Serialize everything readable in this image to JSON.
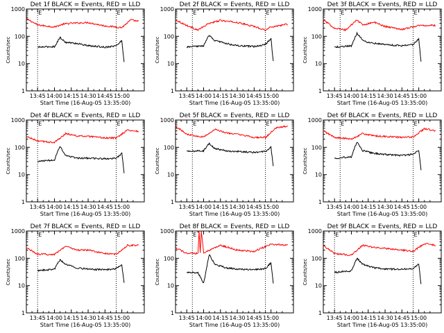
{
  "colors": {
    "events": "#000000",
    "lld": "#ff0000",
    "background": "#ffffff"
  },
  "common": {
    "ylabel": "Counts/sec",
    "xlabel": "Start Time (16-Aug-05 13:35:00)",
    "xticks": [
      "13:45",
      "14:00",
      "14:15",
      "14:30",
      "14:45",
      "15:00"
    ],
    "yticks": [
      "1",
      "10",
      "100",
      "1000"
    ],
    "marker": "E"
  },
  "chart_data": [
    {
      "type": "line",
      "title": "Det 1f BLACK = Events, RED = LLD",
      "yscale": "log",
      "ylim": [
        1,
        1000
      ],
      "xlabel": "Start Time (16-Aug-05 13:35:00)",
      "ylabel": "Counts/sec",
      "series": [
        {
          "x": [
            "13:35",
            "13:45",
            "14:00",
            "14:08",
            "14:15",
            "14:30",
            "14:45",
            "15:00",
            "15:08",
            "15:15"
          ],
          "values": [
            450,
            260,
            220,
            280,
            300,
            320,
            240,
            210,
            400,
            350
          ]
        },
        {
          "x": [
            "13:45",
            "14:00",
            "14:05",
            "14:10",
            "14:20",
            "14:30",
            "14:45",
            "14:55",
            "15:00",
            "15:02"
          ],
          "values": [
            40,
            42,
            90,
            60,
            55,
            45,
            40,
            45,
            70,
            12
          ]
        }
      ],
      "events": [
        "13:45",
        "14:55"
      ]
    },
    {
      "type": "line",
      "title": "Det 2f BLACK = Events, RED = LLD",
      "yscale": "log",
      "ylim": [
        1,
        1000
      ],
      "xlabel": "Start Time (16-Aug-05 13:35:00)",
      "ylabel": "Counts/sec",
      "series": [
        {
          "x": [
            "13:35",
            "13:45",
            "13:55",
            "14:05",
            "14:15",
            "14:30",
            "14:45",
            "14:55",
            "15:00",
            "15:15"
          ],
          "values": [
            400,
            250,
            170,
            300,
            380,
            320,
            230,
            170,
            220,
            280
          ]
        },
        {
          "x": [
            "13:45",
            "14:00",
            "14:05",
            "14:10",
            "14:20",
            "14:30",
            "14:45",
            "14:55",
            "15:00",
            "15:02"
          ],
          "values": [
            40,
            45,
            110,
            70,
            55,
            45,
            42,
            50,
            85,
            12
          ]
        }
      ],
      "events": [
        "13:50",
        "14:55"
      ]
    },
    {
      "type": "line",
      "title": "Det 3f BLACK = Events, RED = LLD",
      "yscale": "log",
      "ylim": [
        1,
        1000
      ],
      "xlabel": "Start Time (16-Aug-05 13:35:00)",
      "ylabel": "Counts/sec",
      "series": [
        {
          "x": [
            "13:35",
            "13:45",
            "13:55",
            "14:05",
            "14:10",
            "14:20",
            "14:30",
            "14:45",
            "15:00",
            "15:15"
          ],
          "values": [
            400,
            200,
            170,
            400,
            260,
            330,
            230,
            180,
            250,
            250
          ]
        },
        {
          "x": [
            "13:45",
            "14:00",
            "14:05",
            "14:10",
            "14:15",
            "14:30",
            "14:45",
            "14:55",
            "15:00",
            "15:02"
          ],
          "values": [
            40,
            45,
            130,
            75,
            60,
            50,
            45,
            50,
            80,
            12
          ]
        }
      ],
      "events": [
        "13:50",
        "14:55"
      ]
    },
    {
      "type": "line",
      "title": "Det 4f BLACK = Events, RED = LLD",
      "yscale": "log",
      "ylim": [
        1,
        1000
      ],
      "xlabel": "Start Time (16-Aug-05 13:35:00)",
      "ylabel": "Counts/sec",
      "series": [
        {
          "x": [
            "13:35",
            "13:45",
            "14:00",
            "14:10",
            "14:20",
            "14:30",
            "14:45",
            "14:55",
            "15:05",
            "15:15"
          ],
          "values": [
            250,
            170,
            150,
            320,
            260,
            250,
            220,
            220,
            430,
            380
          ]
        },
        {
          "x": [
            "13:45",
            "14:00",
            "14:05",
            "14:10",
            "14:20",
            "14:30",
            "14:45",
            "14:55",
            "15:00",
            "15:02"
          ],
          "values": [
            30,
            35,
            110,
            50,
            40,
            40,
            38,
            40,
            60,
            12
          ]
        }
      ],
      "events": [
        "13:45",
        "14:55"
      ]
    },
    {
      "type": "line",
      "title": "Det 5f BLACK = Events, RED = LLD",
      "yscale": "log",
      "ylim": [
        1,
        1000
      ],
      "xlabel": "Start Time (16-Aug-05 13:35:00)",
      "ylabel": "Counts/sec",
      "series": [
        {
          "x": [
            "13:35",
            "13:45",
            "14:00",
            "14:10",
            "14:20",
            "14:30",
            "14:45",
            "14:55",
            "15:05",
            "15:15"
          ],
          "values": [
            600,
            300,
            240,
            450,
            340,
            300,
            230,
            230,
            520,
            600
          ]
        },
        {
          "x": [
            "13:45",
            "14:00",
            "14:05",
            "14:10",
            "14:20",
            "14:30",
            "14:45",
            "14:55",
            "15:00",
            "15:02"
          ],
          "values": [
            70,
            75,
            140,
            90,
            75,
            70,
            65,
            70,
            100,
            20
          ]
        }
      ],
      "events": [
        "13:50",
        "14:55"
      ]
    },
    {
      "type": "line",
      "title": "Det 6f BLACK = Events, RED = LLD",
      "yscale": "log",
      "ylim": [
        1,
        1000
      ],
      "xlabel": "Start Time (16-Aug-05 13:35:00)",
      "ylabel": "Counts/sec",
      "series": [
        {
          "x": [
            "13:35",
            "13:45",
            "14:00",
            "14:10",
            "14:20",
            "14:30",
            "14:45",
            "14:55",
            "15:05",
            "15:15"
          ],
          "values": [
            400,
            230,
            200,
            320,
            260,
            250,
            230,
            240,
            480,
            400
          ]
        },
        {
          "x": [
            "13:45",
            "14:00",
            "14:05",
            "14:10",
            "14:20",
            "14:30",
            "14:45",
            "14:55",
            "15:00",
            "15:02"
          ],
          "values": [
            40,
            45,
            160,
            75,
            60,
            55,
            50,
            55,
            80,
            15
          ]
        }
      ],
      "events": [
        "13:50",
        "14:55"
      ]
    },
    {
      "type": "line",
      "title": "Det 7f BLACK = Events, RED = LLD",
      "yscale": "log",
      "ylim": [
        1,
        1000
      ],
      "xlabel": "Start Time (16-Aug-05 13:35:00)",
      "ylabel": "Counts/sec",
      "series": [
        {
          "x": [
            "13:35",
            "13:45",
            "14:00",
            "14:10",
            "14:20",
            "14:30",
            "14:45",
            "14:55",
            "15:05",
            "15:15"
          ],
          "values": [
            250,
            140,
            140,
            280,
            200,
            200,
            150,
            140,
            300,
            300
          ]
        },
        {
          "x": [
            "13:45",
            "14:00",
            "14:05",
            "14:10",
            "14:20",
            "14:30",
            "14:45",
            "14:55",
            "15:00",
            "15:02"
          ],
          "values": [
            35,
            40,
            90,
            60,
            45,
            40,
            38,
            42,
            60,
            12
          ]
        }
      ],
      "events": [
        "13:45",
        "14:55"
      ]
    },
    {
      "type": "line",
      "title": "Det 8f BLACK = Events, RED = LLD",
      "yscale": "log",
      "ylim": [
        1,
        1000
      ],
      "xlabel": "Start Time (16-Aug-05 13:35:00)",
      "ylabel": "Counts/sec",
      "series": [
        {
          "x": [
            "13:35",
            "13:45",
            "13:55",
            "13:56",
            "13:57",
            "13:58",
            "14:00",
            "14:15",
            "14:30",
            "14:45",
            "15:00",
            "15:15"
          ],
          "values": [
            250,
            150,
            150,
            1000,
            150,
            1000,
            160,
            300,
            200,
            180,
            330,
            300
          ]
        },
        {
          "x": [
            "13:45",
            "13:55",
            "14:00",
            "14:05",
            "14:10",
            "14:20",
            "14:30",
            "14:45",
            "14:55",
            "15:00",
            "15:02"
          ],
          "values": [
            30,
            30,
            12,
            140,
            60,
            45,
            40,
            38,
            42,
            70,
            12
          ]
        }
      ],
      "events": [
        "13:50",
        "14:55"
      ]
    },
    {
      "type": "line",
      "title": "Det 9f BLACK = Events, RED = LLD",
      "yscale": "log",
      "ylim": [
        1,
        1000
      ],
      "xlabel": "Start Time (16-Aug-05 13:35:00)",
      "ylabel": "Counts/sec",
      "series": [
        {
          "x": [
            "13:35",
            "13:45",
            "14:00",
            "14:10",
            "14:20",
            "14:30",
            "14:45",
            "14:55",
            "15:05",
            "15:15"
          ],
          "values": [
            300,
            150,
            130,
            300,
            250,
            230,
            200,
            180,
            350,
            300
          ]
        },
        {
          "x": [
            "13:45",
            "14:00",
            "14:05",
            "14:10",
            "14:20",
            "14:30",
            "14:45",
            "14:55",
            "15:00",
            "15:02"
          ],
          "values": [
            30,
            35,
            100,
            60,
            45,
            40,
            40,
            42,
            60,
            12
          ]
        }
      ],
      "events": [
        "13:45",
        "14:55"
      ]
    }
  ]
}
